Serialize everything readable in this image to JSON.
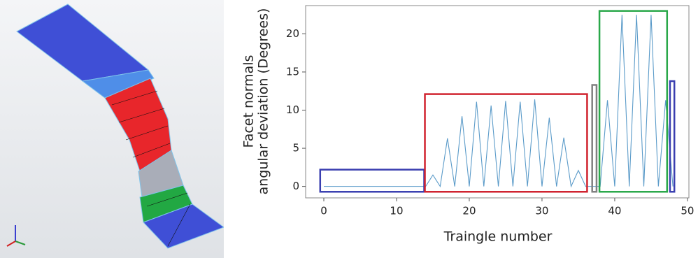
{
  "chart_data": {
    "type": "line",
    "xlabel": "Traingle number",
    "ylabel": [
      "Facet normals",
      "angular deviation (Degrees)"
    ],
    "x": [
      0,
      1,
      2,
      3,
      4,
      5,
      6,
      7,
      8,
      9,
      10,
      11,
      12,
      13,
      14,
      15,
      16,
      17,
      18,
      19,
      20,
      21,
      22,
      23,
      24,
      25,
      26,
      27,
      28,
      29,
      30,
      31,
      32,
      33,
      34,
      35,
      36,
      37,
      38,
      39,
      40,
      41,
      42,
      43,
      44,
      45,
      46,
      47,
      48
    ],
    "series": [
      {
        "color": "#5b9bc9",
        "values": [
          0,
          0,
          0,
          0,
          0,
          0,
          0,
          0,
          0,
          0,
          0,
          0,
          0,
          0,
          0,
          1.5,
          0,
          6.3,
          0,
          9.2,
          0,
          11.1,
          0,
          10.6,
          0,
          11.2,
          0,
          11.1,
          0,
          11.4,
          0,
          9.0,
          0,
          6.4,
          0,
          2.1,
          0,
          0,
          0,
          11.3,
          0,
          22.5,
          0,
          22.5,
          0,
          22.5,
          0,
          11.3,
          0
        ]
      }
    ],
    "xlim": [
      -2.5,
      50.2
    ],
    "ylim": [
      -1.5,
      23.7
    ],
    "xticks": [
      0,
      10,
      20,
      30,
      40,
      50
    ],
    "yticks": [
      0,
      5,
      10,
      15,
      20
    ],
    "highlight_boxes": [
      {
        "color": "#3a3fb0",
        "x": [
          -0.5,
          13.8
        ],
        "y": [
          -0.7,
          2.2
        ]
      },
      {
        "color": "#d0222e",
        "x": [
          13.9,
          36.2
        ],
        "y": [
          -0.7,
          12.1
        ]
      },
      {
        "color": "#808080",
        "x": [
          36.9,
          37.5
        ],
        "y": [
          -0.7,
          13.3
        ]
      },
      {
        "color": "#2aa84a",
        "x": [
          37.9,
          47.2
        ],
        "y": [
          -0.7,
          23.0
        ]
      },
      {
        "color": "#3a3fb0",
        "x": [
          47.6,
          48.2
        ],
        "y": [
          -0.7,
          13.8
        ]
      }
    ]
  }
}
